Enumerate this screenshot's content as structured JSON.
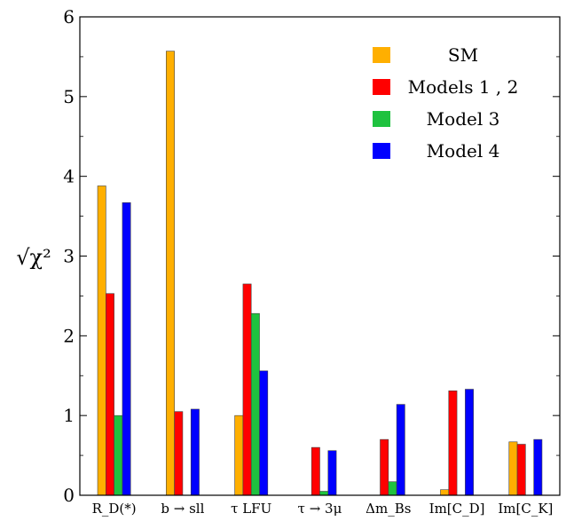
{
  "chart_data": {
    "type": "bar",
    "ylabel": "√χ²",
    "ylim": [
      0,
      6
    ],
    "yticks": [
      "0",
      "1",
      "2",
      "3",
      "4",
      "5",
      "6"
    ],
    "categories": [
      "R_D(*)",
      "b → sll",
      "τ LFU",
      "τ → 3μ",
      "Δm_Bs",
      "Im[C_D]",
      "Im[C_K]"
    ],
    "series": [
      {
        "name": "SM",
        "color": "#FFAF00",
        "values": [
          3.88,
          5.57,
          1.0,
          0.0,
          0.0,
          0.07,
          0.67
        ]
      },
      {
        "name": "Models 1 , 2",
        "color": "#FF0000",
        "values": [
          2.53,
          1.05,
          2.65,
          0.6,
          0.7,
          1.31,
          0.64
        ]
      },
      {
        "name": "Model 3",
        "color": "#1FC23F",
        "values": [
          1.0,
          0.0,
          2.28,
          0.05,
          0.17,
          0.0,
          0.0
        ]
      },
      {
        "name": "Model 4",
        "color": "#0000FF",
        "values": [
          3.67,
          1.08,
          1.56,
          0.56,
          1.14,
          1.33,
          0.7
        ]
      }
    ],
    "legend_position": "top-right",
    "grid": false
  }
}
